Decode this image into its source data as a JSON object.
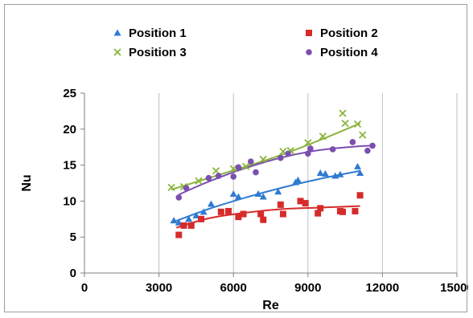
{
  "chart_data": {
    "type": "scatter",
    "title": "",
    "xlabel": "Re",
    "ylabel": "Nu",
    "xlim": [
      0,
      15000
    ],
    "ylim": [
      0,
      25
    ],
    "xticks": [
      0,
      3000,
      6000,
      9000,
      12000,
      15000
    ],
    "yticks": [
      0,
      5,
      10,
      15,
      20,
      25
    ],
    "grid": "vertical gridlines",
    "legend_position": "top",
    "series": [
      {
        "name": "Position 1",
        "marker": "triangle",
        "color": "#2f7bd1",
        "points": [
          [
            3600,
            7.3
          ],
          [
            3800,
            7.0
          ],
          [
            4200,
            7.5
          ],
          [
            4500,
            8.0
          ],
          [
            4800,
            8.5
          ],
          [
            5100,
            9.6
          ],
          [
            6000,
            11.0
          ],
          [
            6200,
            10.6
          ],
          [
            7000,
            11.0
          ],
          [
            7200,
            10.6
          ],
          [
            7800,
            11.3
          ],
          [
            8500,
            12.6
          ],
          [
            8600,
            12.9
          ],
          [
            9500,
            13.9
          ],
          [
            9700,
            13.8
          ],
          [
            10100,
            13.5
          ],
          [
            10300,
            13.7
          ],
          [
            11000,
            14.8
          ],
          [
            11100,
            13.9
          ]
        ],
        "trend": [
          [
            3500,
            7.0
          ],
          [
            5000,
            8.9
          ],
          [
            6500,
            10.5
          ],
          [
            8000,
            11.9
          ],
          [
            9500,
            13.1
          ],
          [
            11100,
            14.2
          ]
        ]
      },
      {
        "name": "Position 2",
        "marker": "square",
        "color": "#d62b2b",
        "points": [
          [
            3800,
            5.3
          ],
          [
            4000,
            6.6
          ],
          [
            4300,
            6.6
          ],
          [
            4700,
            7.5
          ],
          [
            5500,
            8.5
          ],
          [
            5800,
            8.6
          ],
          [
            6200,
            7.8
          ],
          [
            6400,
            8.2
          ],
          [
            7100,
            8.2
          ],
          [
            7200,
            7.4
          ],
          [
            7900,
            9.5
          ],
          [
            8000,
            8.2
          ],
          [
            8700,
            10.0
          ],
          [
            8900,
            9.7
          ],
          [
            9400,
            8.3
          ],
          [
            9500,
            9.0
          ],
          [
            10300,
            8.6
          ],
          [
            10400,
            8.5
          ],
          [
            10900,
            8.6
          ],
          [
            11100,
            10.8
          ]
        ],
        "trend": [
          [
            3700,
            6.3
          ],
          [
            5000,
            7.6
          ],
          [
            6500,
            8.4
          ],
          [
            8000,
            8.9
          ],
          [
            9500,
            9.1
          ],
          [
            11100,
            9.3
          ]
        ]
      },
      {
        "name": "Position 3",
        "marker": "cross",
        "color": "#8ab43c",
        "points": [
          [
            3500,
            11.9
          ],
          [
            4000,
            12.0
          ],
          [
            4600,
            12.8
          ],
          [
            5300,
            14.2
          ],
          [
            6000,
            14.5
          ],
          [
            6500,
            14.8
          ],
          [
            7200,
            15.8
          ],
          [
            8000,
            16.9
          ],
          [
            8300,
            17.0
          ],
          [
            9000,
            18.1
          ],
          [
            9600,
            19.0
          ],
          [
            10400,
            22.2
          ],
          [
            10500,
            20.8
          ],
          [
            11000,
            20.7
          ],
          [
            11200,
            19.2
          ]
        ],
        "trend": [
          [
            3500,
            11.6
          ],
          [
            5000,
            13.2
          ],
          [
            6500,
            14.8
          ],
          [
            8000,
            16.5
          ],
          [
            9500,
            18.5
          ],
          [
            11100,
            20.8
          ]
        ]
      },
      {
        "name": "Position 4",
        "marker": "circle",
        "color": "#7b4fb0",
        "points": [
          [
            3800,
            10.5
          ],
          [
            4100,
            11.8
          ],
          [
            5000,
            13.2
          ],
          [
            5400,
            13.5
          ],
          [
            6000,
            13.4
          ],
          [
            6200,
            14.7
          ],
          [
            6700,
            15.5
          ],
          [
            6900,
            14.0
          ],
          [
            7900,
            16.0
          ],
          [
            8200,
            16.6
          ],
          [
            9000,
            16.6
          ],
          [
            9100,
            17.3
          ],
          [
            10000,
            17.2
          ],
          [
            10800,
            18.2
          ],
          [
            11400,
            17.0
          ],
          [
            11600,
            17.7
          ]
        ],
        "trend": [
          [
            3800,
            10.9
          ],
          [
            5000,
            12.7
          ],
          [
            6500,
            14.6
          ],
          [
            8000,
            16.1
          ],
          [
            9500,
            17.1
          ],
          [
            11000,
            17.6
          ],
          [
            11600,
            17.7
          ]
        ]
      }
    ]
  }
}
